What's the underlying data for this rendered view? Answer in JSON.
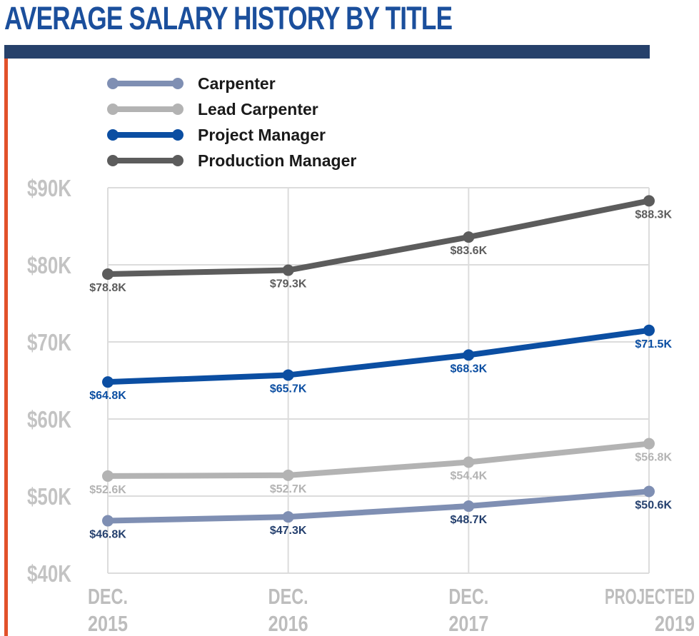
{
  "title": "AVERAGE SALARY HISTORY BY TITLE",
  "chart_data": {
    "type": "line",
    "title": "AVERAGE SALARY HISTORY BY TITLE",
    "x": [
      [
        "DEC.",
        "2015"
      ],
      [
        "DEC.",
        "2016"
      ],
      [
        "DEC.",
        "2017"
      ],
      [
        "PROJECTED",
        "2019"
      ]
    ],
    "y_ticks": [
      "$90K",
      "$80K",
      "$70K",
      "$60K",
      "$50K",
      "$40K"
    ],
    "ylim": [
      40,
      90
    ],
    "grid": true,
    "legend_position": "top-left",
    "series": [
      {
        "name": "Carpenter",
        "color": "#7f8fb3",
        "label_color": "#25406e",
        "values": [
          46.8,
          47.3,
          48.7,
          50.6
        ],
        "labels": [
          "$46.8K",
          "$47.3K",
          "$48.7K",
          "$50.6K"
        ]
      },
      {
        "name": "Lead Carpenter",
        "color": "#b3b3b3",
        "label_color": "#b3b3b3",
        "values": [
          52.6,
          52.7,
          54.4,
          56.8
        ],
        "labels": [
          "$52.6K",
          "$52.7K",
          "$54.4K",
          "$56.8K"
        ]
      },
      {
        "name": "Project Manager",
        "color": "#0b4ea2",
        "label_color": "#0b4ea2",
        "values": [
          64.8,
          65.7,
          68.3,
          71.5
        ],
        "labels": [
          "$64.8K",
          "$65.7K",
          "$68.3K",
          "$71.5K"
        ]
      },
      {
        "name": "Production Manager",
        "color": "#5c5c5c",
        "label_color": "#5c5c5c",
        "values": [
          78.8,
          79.3,
          83.6,
          88.3
        ],
        "labels": [
          "$78.8K",
          "$79.3K",
          "$83.6K",
          "$88.3K"
        ]
      }
    ]
  }
}
